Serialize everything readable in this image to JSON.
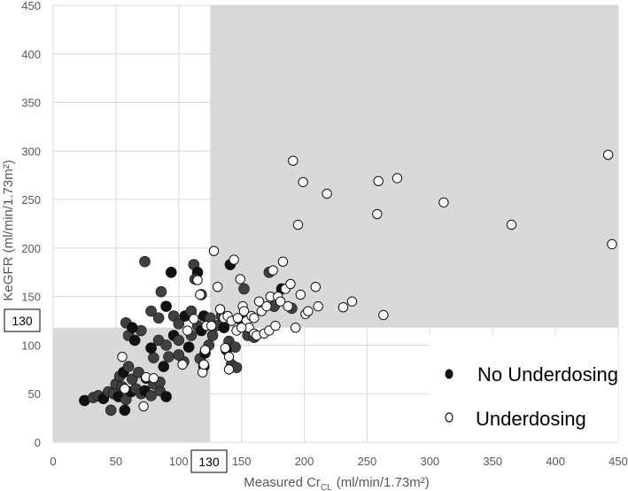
{
  "chart_data": {
    "type": "scatter",
    "xlabel_main": "Measured Cr",
    "xlabel_sub": "CL",
    "xlabel_unit": "(ml/min/1.73m²)",
    "ylabel": "KeGFR (ml/min/1.73m²)",
    "xlim": [
      0,
      450
    ],
    "ylim": [
      0,
      450
    ],
    "x_ticks": [
      "0",
      "50",
      "100",
      "150",
      "200",
      "250",
      "300",
      "350",
      "400",
      "450"
    ],
    "y_ticks": [
      "0",
      "50",
      "100",
      "150",
      "200",
      "250",
      "300",
      "350",
      "400",
      "450"
    ],
    "grid": true,
    "legend_position": "bottom-right",
    "threshold_marker_x": "130",
    "threshold_marker_y": "130",
    "shaded_regions": [
      {
        "x": [
          0,
          125
        ],
        "y": [
          0,
          118
        ]
      },
      {
        "x": [
          125,
          450
        ],
        "y": [
          118,
          450
        ]
      }
    ],
    "colors": {
      "filled_marker": "#111111",
      "dark_gray_marker": "#404040",
      "open_marker": "#ffffff",
      "shading": "#d9d9d9",
      "grid": "#d9d9d9"
    },
    "series": [
      {
        "name": "No Underdosing",
        "marker": "filled",
        "points": [
          [
            25,
            43
          ],
          [
            32,
            46
          ],
          [
            36,
            48
          ],
          [
            40,
            45
          ],
          [
            44,
            52
          ],
          [
            48,
            50
          ],
          [
            52,
            47
          ],
          [
            58,
            44
          ],
          [
            46,
            33
          ],
          [
            57,
            33
          ],
          [
            50,
            60
          ],
          [
            53,
            68
          ],
          [
            56,
            72
          ],
          [
            60,
            78
          ],
          [
            55,
            57
          ],
          [
            62,
            52
          ],
          [
            66,
            55
          ],
          [
            70,
            50
          ],
          [
            73,
            53
          ],
          [
            78,
            48
          ],
          [
            85,
            53
          ],
          [
            90,
            47
          ],
          [
            63,
            65
          ],
          [
            68,
            72
          ],
          [
            74,
            66
          ],
          [
            80,
            60
          ],
          [
            85,
            62
          ],
          [
            88,
            78
          ],
          [
            92,
            88
          ],
          [
            80,
            87
          ],
          [
            78,
            97
          ],
          [
            84,
            105
          ],
          [
            90,
            100
          ],
          [
            96,
            110
          ],
          [
            100,
            105
          ],
          [
            60,
            110
          ],
          [
            65,
            105
          ],
          [
            70,
            115
          ],
          [
            58,
            123
          ],
          [
            63,
            118
          ],
          [
            78,
            135
          ],
          [
            84,
            128
          ],
          [
            90,
            140
          ],
          [
            96,
            130
          ],
          [
            100,
            122
          ],
          [
            105,
            130
          ],
          [
            110,
            135
          ],
          [
            115,
            120
          ],
          [
            120,
            130
          ],
          [
            125,
            128
          ],
          [
            73,
            186
          ],
          [
            94,
            175
          ],
          [
            86,
            155
          ],
          [
            112,
            183
          ],
          [
            115,
            175
          ],
          [
            113,
            168
          ],
          [
            118,
            152
          ],
          [
            108,
            98
          ],
          [
            104,
            83
          ],
          [
            117,
            86
          ],
          [
            121,
            92
          ],
          [
            124,
            100
          ],
          [
            110,
            110
          ],
          [
            118,
            115
          ],
          [
            130,
            120
          ],
          [
            134,
            130
          ],
          [
            136,
            118
          ],
          [
            140,
            104
          ],
          [
            145,
            98
          ],
          [
            138,
            95
          ],
          [
            142,
            80
          ],
          [
            146,
            77
          ],
          [
            150,
            125
          ],
          [
            155,
            110
          ],
          [
            152,
            158
          ],
          [
            141,
            183
          ],
          [
            172,
            175
          ],
          [
            176,
            140
          ],
          [
            182,
            158
          ],
          [
            190,
            138
          ],
          [
            160,
            108
          ],
          [
            120,
            78
          ],
          [
            127,
            110
          ],
          [
            100,
            90
          ]
        ]
      },
      {
        "name": "Underdosing",
        "marker": "open",
        "points": [
          [
            55,
            88
          ],
          [
            57,
            55
          ],
          [
            72,
            37
          ],
          [
            74,
            67
          ],
          [
            80,
            66
          ],
          [
            103,
            80
          ],
          [
            107,
            115
          ],
          [
            112,
            127
          ],
          [
            115,
            167
          ],
          [
            117,
            152
          ],
          [
            119,
            72
          ],
          [
            120,
            80
          ],
          [
            121,
            95
          ],
          [
            122,
            120
          ],
          [
            126,
            120
          ],
          [
            128,
            197
          ],
          [
            131,
            160
          ],
          [
            133,
            137
          ],
          [
            136,
            128
          ],
          [
            137,
            97
          ],
          [
            139,
            130
          ],
          [
            140,
            88
          ],
          [
            142,
            125
          ],
          [
            144,
            188
          ],
          [
            146,
            115
          ],
          [
            147,
            128
          ],
          [
            149,
            168
          ],
          [
            151,
            140
          ],
          [
            152,
            135
          ],
          [
            154,
            125
          ],
          [
            156,
            118
          ],
          [
            158,
            130
          ],
          [
            160,
            112
          ],
          [
            162,
            110
          ],
          [
            164,
            145
          ],
          [
            166,
            135
          ],
          [
            168,
            112
          ],
          [
            170,
            140
          ],
          [
            172,
            115
          ],
          [
            173,
            150
          ],
          [
            175,
            177
          ],
          [
            177,
            120
          ],
          [
            179,
            150
          ],
          [
            181,
            145
          ],
          [
            183,
            186
          ],
          [
            185,
            158
          ],
          [
            187,
            140
          ],
          [
            189,
            163
          ],
          [
            191,
            290
          ],
          [
            193,
            118
          ],
          [
            195,
            224
          ],
          [
            197,
            152
          ],
          [
            199,
            268
          ],
          [
            201,
            132
          ],
          [
            203,
            135
          ],
          [
            209,
            160
          ],
          [
            211,
            140
          ],
          [
            218,
            256
          ],
          [
            231,
            139
          ],
          [
            238,
            145
          ],
          [
            258,
            235
          ],
          [
            259,
            269
          ],
          [
            263,
            131
          ],
          [
            274,
            272
          ],
          [
            311,
            247
          ],
          [
            365,
            224
          ],
          [
            442,
            296
          ],
          [
            445,
            204
          ],
          [
            150,
            118
          ],
          [
            160,
            128
          ],
          [
            140,
            75
          ]
        ]
      }
    ]
  },
  "legend": {
    "items": [
      {
        "label": "No Underdosing",
        "marker": "filled"
      },
      {
        "label": "Underdosing",
        "marker": "open"
      }
    ]
  }
}
